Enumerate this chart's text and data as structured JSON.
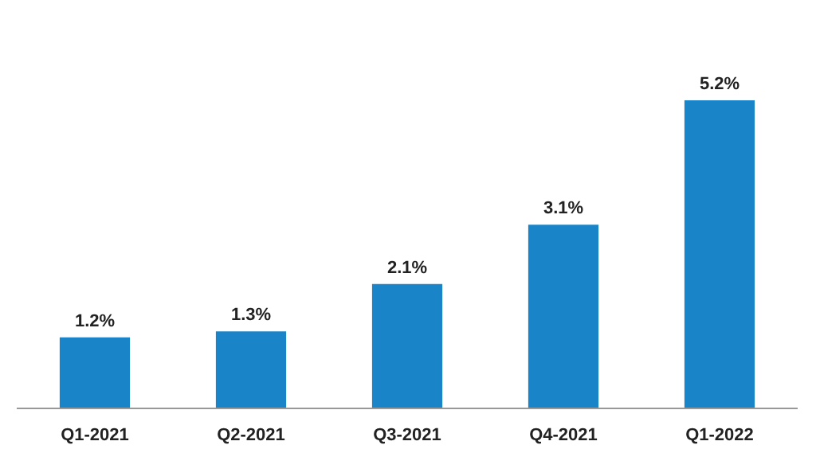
{
  "chart_data": {
    "type": "bar",
    "categories": [
      "Q1-2021",
      "Q2-2021",
      "Q3-2021",
      "Q4-2021",
      "Q1-2022"
    ],
    "values": [
      1.2,
      1.3,
      2.1,
      3.1,
      5.2
    ],
    "value_labels": [
      "1.2%",
      "1.3%",
      "2.1%",
      "3.1%",
      "5.2%"
    ],
    "color": "#1a84c8",
    "grid": false
  }
}
